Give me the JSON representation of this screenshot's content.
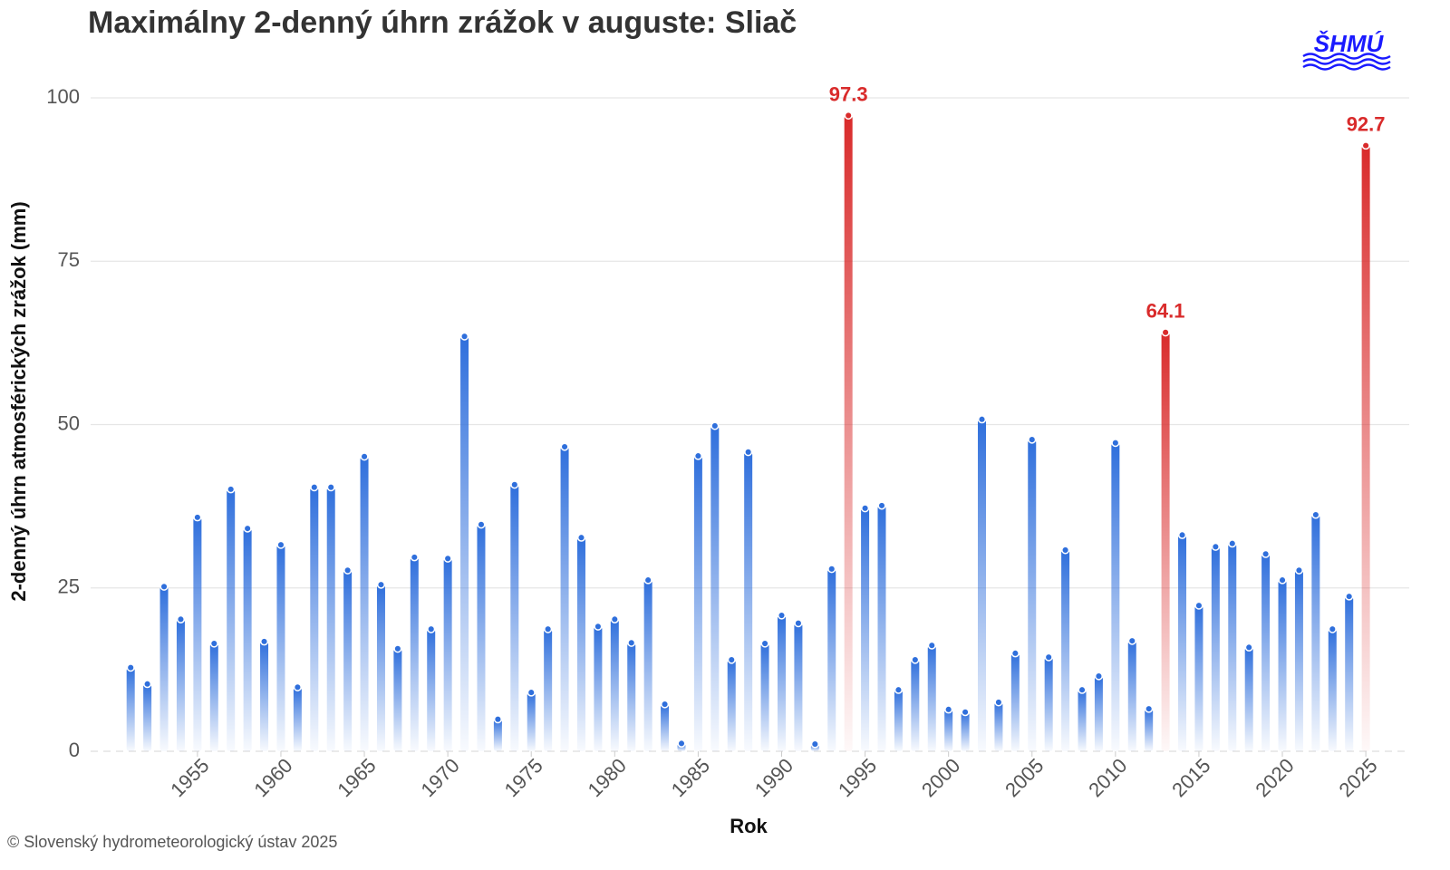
{
  "chart_data": {
    "type": "bar",
    "title": "Maximálny 2-denný úhrn zrážok v auguste: Sliač",
    "y_label": "2-denný úhrn atmosférických zrážok (mm)",
    "x_label": "Rok",
    "credit": "© Slovenský hydrometeorologický ústav 2025",
    "logo": "ŠHMÚ",
    "x": [
      1951,
      1952,
      1953,
      1954,
      1955,
      1956,
      1957,
      1958,
      1959,
      1960,
      1961,
      1962,
      1963,
      1964,
      1965,
      1966,
      1967,
      1968,
      1969,
      1970,
      1971,
      1972,
      1973,
      1974,
      1975,
      1976,
      1977,
      1978,
      1979,
      1980,
      1981,
      1982,
      1983,
      1984,
      1985,
      1986,
      1987,
      1988,
      1989,
      1990,
      1991,
      1992,
      1993,
      1994,
      1995,
      1996,
      1997,
      1998,
      1999,
      2000,
      2001,
      2002,
      2003,
      2004,
      2005,
      2006,
      2007,
      2008,
      2009,
      2010,
      2011,
      2012,
      2013,
      2014,
      2015,
      2016,
      2017,
      2018,
      2019,
      2020,
      2021,
      2022,
      2023,
      2024,
      2025
    ],
    "values": [
      12.8,
      10.3,
      25.2,
      20.2,
      35.8,
      16.5,
      40.1,
      34.1,
      16.8,
      31.6,
      9.8,
      40.4,
      40.4,
      27.7,
      45.1,
      25.5,
      15.7,
      29.7,
      18.7,
      29.5,
      63.5,
      34.7,
      4.9,
      40.8,
      9.0,
      18.7,
      46.6,
      32.7,
      19.1,
      20.2,
      16.6,
      26.2,
      7.2,
      1.2,
      45.2,
      49.8,
      14.0,
      45.8,
      16.5,
      20.8,
      19.6,
      1.1,
      27.9,
      97.3,
      37.2,
      37.6,
      9.4,
      14.0,
      16.2,
      6.4,
      6.0,
      50.8,
      7.5,
      15.0,
      47.7,
      14.4,
      30.8,
      9.4,
      11.5,
      47.2,
      16.9,
      6.5,
      64.1,
      33.1,
      22.3,
      31.3,
      31.8,
      15.9,
      30.2,
      26.2,
      27.7,
      36.2,
      18.7,
      23.7,
      92.7
    ],
    "color": "#2f6fdc",
    "colors": [
      "#2f6fdc",
      "#2f6fdc",
      "#2f6fdc",
      "#2f6fdc",
      "#2f6fdc",
      "#2f6fdc",
      "#2f6fdc",
      "#2f6fdc",
      "#2f6fdc",
      "#2f6fdc",
      "#2f6fdc",
      "#2f6fdc",
      "#2f6fdc",
      "#2f6fdc",
      "#2f6fdc",
      "#2f6fdc",
      "#2f6fdc",
      "#2f6fdc",
      "#2f6fdc",
      "#2f6fdc",
      "#2f6fdc",
      "#2f6fdc",
      "#2f6fdc",
      "#2f6fdc",
      "#2f6fdc",
      "#2f6fdc",
      "#2f6fdc",
      "#2f6fdc",
      "#2f6fdc",
      "#2f6fdc",
      "#2f6fdc",
      "#2f6fdc",
      "#2f6fdc",
      "#2f6fdc",
      "#2f6fdc",
      "#2f6fdc",
      "#2f6fdc",
      "#2f6fdc",
      "#2f6fdc",
      "#2f6fdc",
      "#2f6fdc",
      "#2f6fdc",
      "#2f6fdc",
      "#d92b2b",
      "#2f6fdc",
      "#2f6fdc",
      "#2f6fdc",
      "#2f6fdc",
      "#2f6fdc",
      "#2f6fdc",
      "#2f6fdc",
      "#2f6fdc",
      "#2f6fdc",
      "#2f6fdc",
      "#2f6fdc",
      "#2f6fdc",
      "#2f6fdc",
      "#2f6fdc",
      "#2f6fdc",
      "#2f6fdc",
      "#2f6fdc",
      "#2f6fdc",
      "#d92b2b",
      "#2f6fdc",
      "#2f6fdc",
      "#2f6fdc",
      "#2f6fdc",
      "#2f6fdc",
      "#2f6fdc",
      "#2f6fdc",
      "#2f6fdc",
      "#2f6fdc",
      "#2f6fdc",
      "#2f6fdc",
      "#d92b2b"
    ],
    "xlim": [
      1948.6,
      2027.6
    ],
    "xticks": [
      1955,
      1960,
      1965,
      1970,
      1975,
      1980,
      1985,
      1990,
      1995,
      2000,
      2005,
      2010,
      2015,
      2020,
      2025
    ],
    "ylim": [
      0,
      100
    ],
    "yticks": [
      0,
      25,
      50,
      75,
      100
    ],
    "grid": true
  }
}
